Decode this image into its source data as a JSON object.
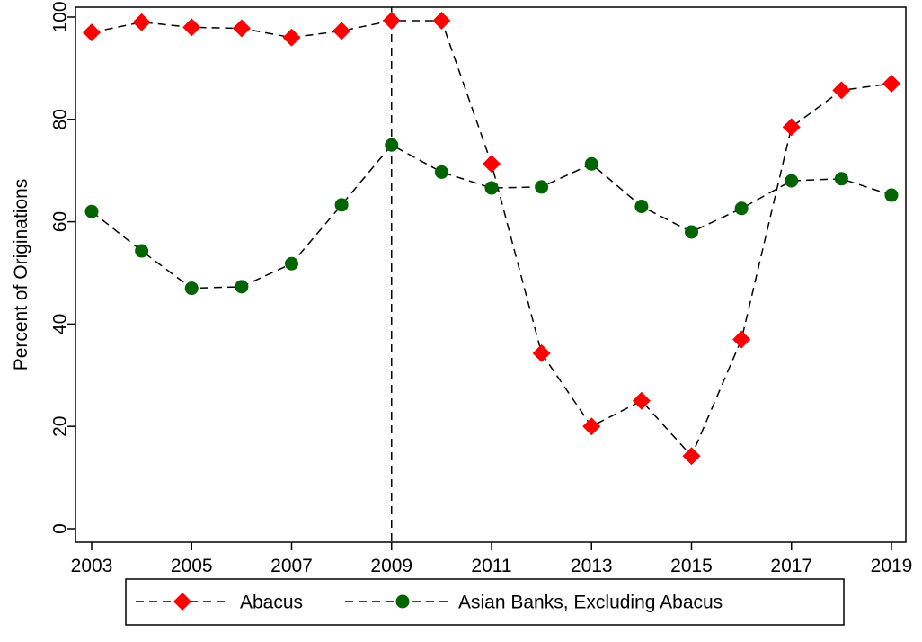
{
  "chart_data": {
    "type": "line",
    "title": "",
    "xlabel": "",
    "ylabel": "Percent of Originations",
    "xlim": [
      2003,
      2019
    ],
    "ylim": [
      0,
      100
    ],
    "x_ticks": [
      2003,
      2005,
      2007,
      2009,
      2011,
      2013,
      2015,
      2017,
      2019
    ],
    "y_ticks": [
      0,
      20,
      40,
      60,
      80,
      100
    ],
    "grid": false,
    "legend_position": "bottom",
    "reference_line": {
      "orientation": "vertical",
      "x": 2009,
      "style": "dashed"
    },
    "x": [
      2003,
      2004,
      2005,
      2006,
      2007,
      2008,
      2009,
      2010,
      2011,
      2012,
      2013,
      2014,
      2015,
      2016,
      2017,
      2018,
      2019
    ],
    "series": [
      {
        "name": "Abacus",
        "marker": "diamond",
        "color": "#ff0000",
        "line_style": "dashed",
        "values": [
          97.0,
          99.0,
          98.0,
          97.8,
          96.0,
          97.3,
          99.3,
          99.3,
          71.3,
          34.3,
          20.0,
          25.0,
          14.2,
          37.0,
          78.5,
          85.7,
          87.0
        ]
      },
      {
        "name": "Asian Banks, Excluding Abacus",
        "marker": "circle",
        "color": "#006400",
        "line_style": "dashed",
        "values": [
          62.0,
          54.3,
          47.0,
          47.3,
          51.8,
          63.3,
          75.0,
          69.7,
          66.6,
          66.8,
          71.3,
          63.0,
          58.0,
          62.6,
          68.0,
          68.4,
          65.2
        ]
      }
    ]
  }
}
